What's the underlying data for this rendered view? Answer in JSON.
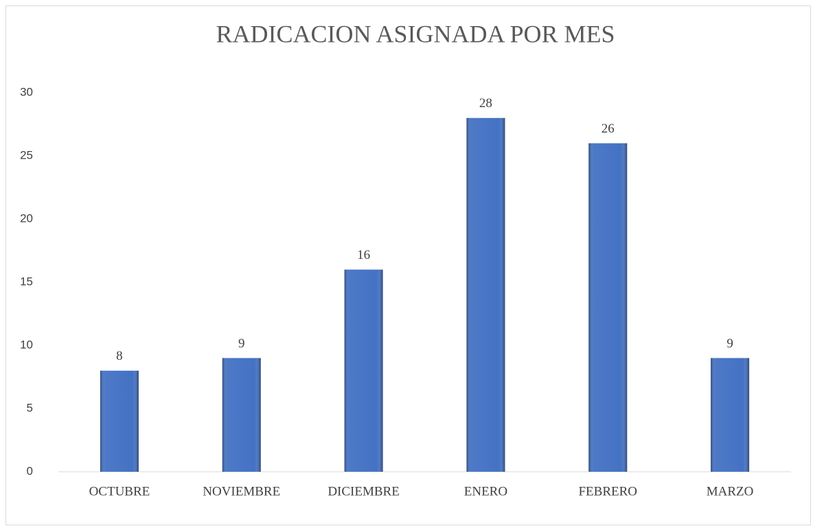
{
  "chart_data": {
    "type": "bar",
    "title": "RADICACION ASIGNADA POR MES",
    "categories": [
      "OCTUBRE",
      "NOVIEMBRE",
      "DICIEMBRE",
      "ENERO",
      "FEBRERO",
      "MARZO"
    ],
    "values": [
      8,
      9,
      16,
      28,
      26,
      9
    ],
    "color": "#4472c4",
    "ylim": [
      0,
      30
    ],
    "yticks": [
      0,
      5,
      10,
      15,
      20,
      25,
      30
    ],
    "grid": false
  }
}
